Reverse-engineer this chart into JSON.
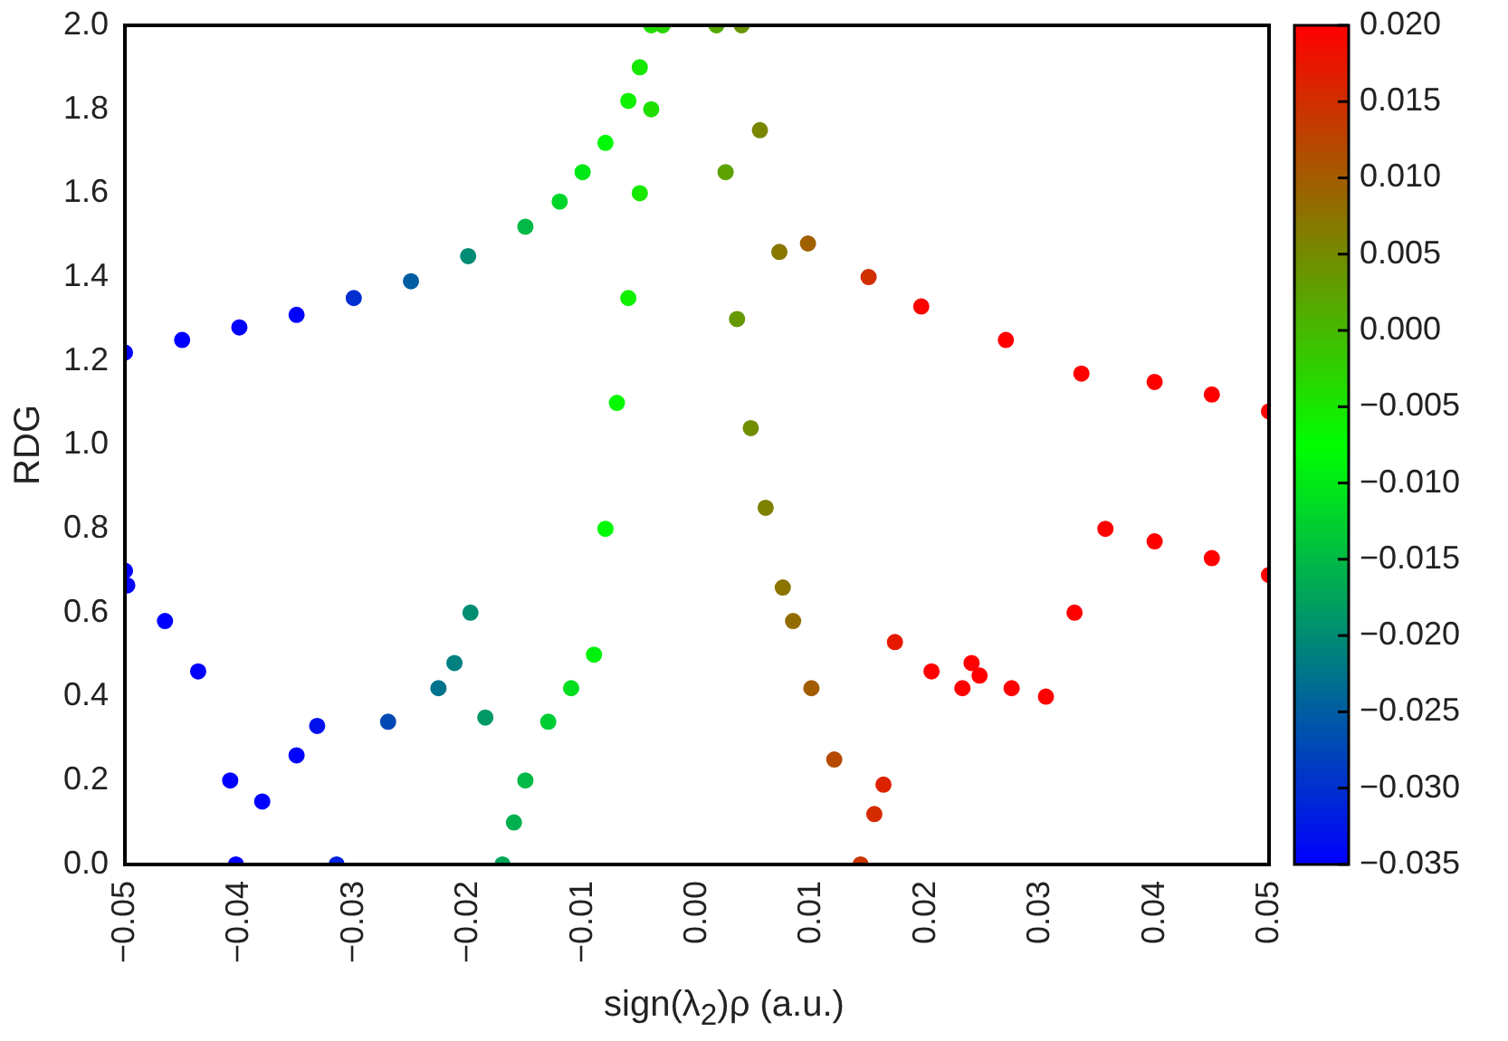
{
  "chart_data": {
    "type": "scatter",
    "xlabel": "sign(λ$_{2}$)ρ (a.u.)",
    "ylabel": "RDG",
    "marker": "circle",
    "grid": false,
    "xlim": [
      -0.05,
      0.05
    ],
    "ylim": [
      0,
      2.0
    ],
    "xticks": [
      {
        "value": -0.05,
        "label": "−0.05"
      },
      {
        "value": -0.04,
        "label": "−0.04"
      },
      {
        "value": -0.03,
        "label": "−0.03"
      },
      {
        "value": -0.02,
        "label": "−0.02"
      },
      {
        "value": -0.01,
        "label": "−0.01"
      },
      {
        "value": 0,
        "label": "0.00"
      },
      {
        "value": 0.01,
        "label": "0.01"
      },
      {
        "value": 0.02,
        "label": "0.02"
      },
      {
        "value": 0.03,
        "label": "0.03"
      },
      {
        "value": 0.04,
        "label": "0.04"
      },
      {
        "value": 0.05,
        "label": "0.05"
      }
    ],
    "yticks": [
      {
        "value": 0,
        "label": "0.0"
      },
      {
        "value": 0.2,
        "label": "0.2"
      },
      {
        "value": 0.4,
        "label": "0.4"
      },
      {
        "value": 0.6,
        "label": "0.6"
      },
      {
        "value": 0.8,
        "label": "0.8"
      },
      {
        "value": 1.0,
        "label": "1.0"
      },
      {
        "value": 1.2,
        "label": "1.2"
      },
      {
        "value": 1.4,
        "label": "1.4"
      },
      {
        "value": 1.6,
        "label": "1.6"
      },
      {
        "value": 1.8,
        "label": "1.8"
      },
      {
        "value": 2.0,
        "label": "2.0"
      }
    ],
    "clim": [
      -0.035,
      0.02
    ],
    "cticks": [
      {
        "value": 0.02,
        "label": "0.020"
      },
      {
        "value": 0.015,
        "label": "0.015"
      },
      {
        "value": 0.01,
        "label": "0.010"
      },
      {
        "value": 0.005,
        "label": "0.005"
      },
      {
        "value": 0,
        "label": "0.000"
      },
      {
        "value": -0.005,
        "label": "−0.005"
      },
      {
        "value": -0.01,
        "label": "−0.010"
      },
      {
        "value": -0.015,
        "label": "−0.015"
      },
      {
        "value": -0.02,
        "label": "−0.020"
      },
      {
        "value": -0.025,
        "label": "−0.025"
      },
      {
        "value": -0.03,
        "label": "−0.030"
      },
      {
        "value": -0.035,
        "label": "−0.035"
      }
    ],
    "x": [
      -0.05,
      -0.045,
      -0.04,
      -0.035,
      -0.03,
      -0.025,
      -0.02,
      -0.015,
      -0.012,
      -0.01,
      -0.008,
      -0.006,
      -0.005,
      -0.004,
      -0.003,
      -0.004,
      -0.005,
      -0.006,
      -0.007,
      -0.008,
      -0.009,
      -0.011,
      -0.013,
      -0.015,
      -0.016,
      -0.017,
      -0.0185,
      -0.0198,
      -0.0212,
      -0.0226,
      -0.027,
      -0.0315,
      -0.0332,
      -0.035,
      -0.038,
      -0.0403,
      -0.0408,
      -0.0436,
      -0.0465,
      -0.0498,
      -0.05,
      0.0017,
      0.0025,
      0.0035,
      0.0047,
      0.006,
      0.0075,
      0.0084,
      0.01,
      0.012,
      0.0143,
      0.0155,
      0.0163,
      0.0173,
      0.0205,
      0.0232,
      0.024,
      0.0247,
      0.0275,
      0.0305,
      0.033,
      0.0357,
      0.04,
      0.045,
      0.05,
      0.05,
      0.045,
      0.04,
      0.0336,
      0.027,
      0.0196,
      0.015,
      0.0097,
      0.0072,
      0.0055,
      0.0039
    ],
    "values": [
      1.22,
      1.25,
      1.28,
      1.31,
      1.35,
      1.39,
      1.45,
      1.52,
      1.58,
      1.65,
      1.72,
      1.82,
      1.9,
      2.0,
      2.0,
      1.8,
      1.6,
      1.35,
      1.1,
      0.8,
      0.5,
      0.42,
      0.34,
      0.2,
      0.1,
      0.0,
      0.35,
      0.6,
      0.48,
      0.42,
      0.34,
      0.0,
      0.33,
      0.26,
      0.15,
      0.0,
      0.2,
      0.46,
      0.58,
      0.665,
      0.7,
      2.0,
      1.65,
      1.3,
      1.04,
      0.85,
      0.66,
      0.58,
      0.42,
      0.25,
      0.0,
      0.12,
      0.19,
      0.53,
      0.46,
      0.42,
      0.48,
      0.45,
      0.42,
      0.4,
      0.6,
      0.8,
      0.77,
      0.73,
      0.69,
      1.08,
      1.12,
      1.15,
      1.17,
      1.25,
      1.33,
      1.4,
      1.48,
      1.46,
      1.75,
      2.0
    ],
    "cvalues": [
      -0.035,
      -0.035,
      -0.035,
      -0.035,
      -0.03,
      -0.025,
      -0.02,
      -0.015,
      -0.012,
      -0.01,
      -0.008,
      -0.006,
      -0.005,
      -0.004,
      -0.003,
      -0.004,
      -0.005,
      -0.006,
      -0.007,
      -0.008,
      -0.009,
      -0.011,
      -0.013,
      -0.015,
      -0.016,
      -0.017,
      -0.0185,
      -0.0198,
      -0.0212,
      -0.0226,
      -0.027,
      -0.0315,
      -0.0332,
      -0.035,
      -0.035,
      -0.035,
      -0.035,
      -0.035,
      -0.035,
      -0.035,
      -0.035,
      0.0017,
      0.0025,
      0.0035,
      0.0047,
      0.006,
      0.0075,
      0.0084,
      0.01,
      0.012,
      0.0143,
      0.0155,
      0.0163,
      0.0173,
      0.02,
      0.02,
      0.02,
      0.02,
      0.02,
      0.02,
      0.02,
      0.02,
      0.02,
      0.02,
      0.02,
      0.02,
      0.02,
      0.02,
      0.02,
      0.02,
      0.0196,
      0.015,
      0.0097,
      0.0072,
      0.0055,
      0.0039
    ]
  }
}
